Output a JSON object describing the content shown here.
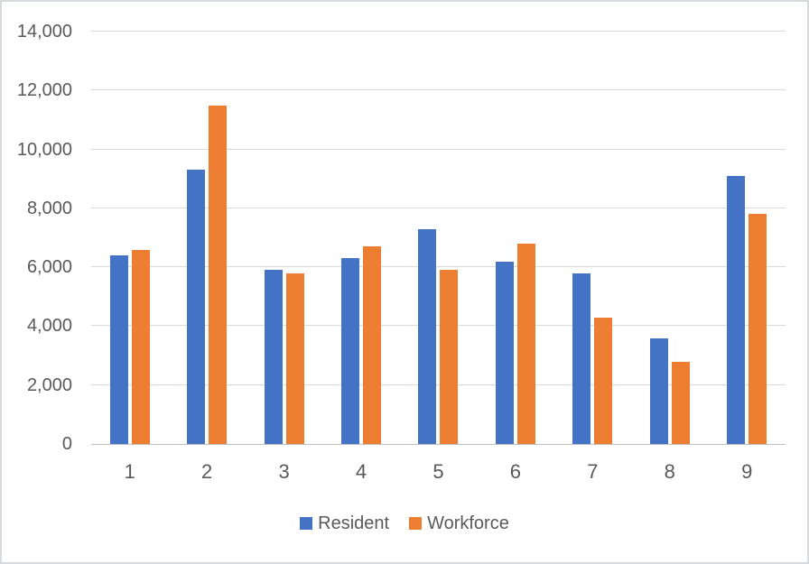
{
  "chart_data": {
    "type": "bar",
    "title": "",
    "categories": [
      "1",
      "2",
      "3",
      "4",
      "5",
      "6",
      "7",
      "8",
      "9"
    ],
    "series": [
      {
        "name": "Resident",
        "color": "#4472C4",
        "values": [
          6400,
          9300,
          5900,
          6300,
          7300,
          6200,
          5800,
          3600,
          9100
        ]
      },
      {
        "name": "Workforce",
        "color": "#ED7D31",
        "values": [
          6600,
          11500,
          5800,
          6700,
          5900,
          6800,
          4300,
          2800,
          7800
        ]
      }
    ],
    "xlabel": "",
    "ylabel": "",
    "ylim": [
      0,
      14000
    ],
    "ytick_interval": 2000,
    "yticks": [
      0,
      2000,
      4000,
      6000,
      8000,
      10000,
      12000,
      14000
    ],
    "ytick_labels": [
      "0",
      "2,000",
      "4,000",
      "6,000",
      "8,000",
      "10,000",
      "12,000",
      "14,000"
    ],
    "grid": "horizontal",
    "legend_position": "bottom"
  },
  "colors": {
    "resident_bar": "#4472C4",
    "workforce_bar": "#ED7D31",
    "gridline": "#D9D9D9",
    "axis_line": "#BFBFBF",
    "tick_text": "#595959",
    "frame_border": "#D6D9DE",
    "background": "#FFFFFF"
  }
}
